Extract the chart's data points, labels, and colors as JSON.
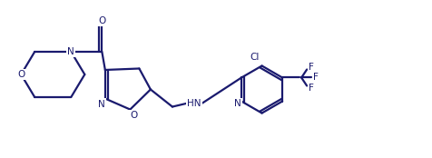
{
  "bg_color": "#ffffff",
  "line_color": "#1a1a6e",
  "line_width": 1.6,
  "font_size": 7.5,
  "figsize": [
    4.77,
    1.74
  ],
  "dpi": 100,
  "xlim": [
    0,
    9.5
  ],
  "ylim": [
    -0.5,
    2.2
  ]
}
